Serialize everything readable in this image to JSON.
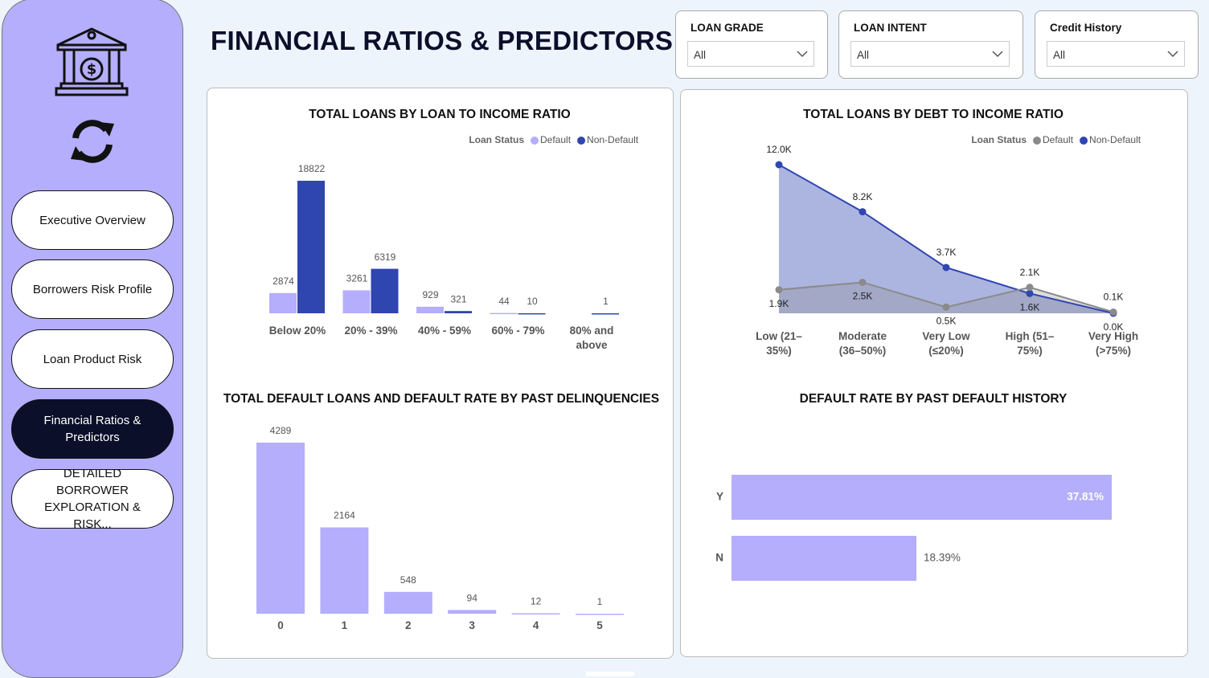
{
  "title": "FINANCIAL RATIOS & PREDICTORS",
  "nav": [
    "Executive Overview",
    "Borrowers Risk Profile",
    "Loan Product Risk",
    "Financial Ratios & Predictors",
    "DETAILED BORROWER EXPLORATION & RISK..."
  ],
  "nav_active": 3,
  "filters": [
    {
      "label": "LOAN GRADE",
      "value": "All"
    },
    {
      "label": "LOAN INTENT",
      "value": "All"
    },
    {
      "label": "Credit History",
      "value": "All"
    }
  ],
  "chart_data": [
    {
      "type": "bar",
      "title": "TOTAL LOANS BY  LOAN TO INCOME RATIO",
      "legend_title": "Loan Status",
      "categories": [
        "Below 20%",
        "20% - 39%",
        "40% - 59%",
        "60% - 79%",
        "80% and above"
      ],
      "series": [
        {
          "name": "Default",
          "color": "#b4aefc",
          "values": [
            2874,
            3261,
            929,
            44,
            null
          ]
        },
        {
          "name": "Non-Default",
          "color": "#2f45b0",
          "values": [
            18822,
            6319,
            321,
            10,
            1
          ]
        }
      ]
    },
    {
      "type": "area",
      "title": "TOTAL LOANS BY DEBT TO INCOME RATIO",
      "legend_title": "Loan Status",
      "categories": [
        "Low (21–35%)",
        "Moderate (36–50%)",
        "Very Low (≤20%)",
        "High (51–75%)",
        "Very High (>75%)"
      ],
      "series": [
        {
          "name": "Default",
          "color": "#8a8a8a",
          "values": [
            1900,
            2500,
            500,
            2100,
            100
          ],
          "value_labels": [
            "1.9K",
            "2.5K",
            "0.5K",
            "2.1K",
            "0.1K"
          ]
        },
        {
          "name": "Non-Default",
          "color": "#2f45b0",
          "values": [
            12000,
            8200,
            3700,
            1600,
            0
          ],
          "value_labels": [
            "12.0K",
            "8.2K",
            "3.7K",
            "1.6K",
            "0.0K"
          ]
        }
      ]
    },
    {
      "type": "bar",
      "title": "TOTAL DEFAULT LOANS AND DEFAULT RATE BY PAST DELINQUENCIES",
      "categories": [
        "0",
        "1",
        "2",
        "3",
        "4",
        "5"
      ],
      "values": [
        4289,
        2164,
        548,
        94,
        12,
        1
      ],
      "color": "#b4aefc"
    },
    {
      "type": "hbar",
      "title": "DEFAULT RATE BY PAST DEFAULT HISTORY",
      "categories": [
        "Y",
        "N"
      ],
      "values": [
        37.81,
        18.39
      ],
      "value_labels": [
        "37.81%",
        "18.39%"
      ],
      "color": "#b4aefc"
    }
  ]
}
